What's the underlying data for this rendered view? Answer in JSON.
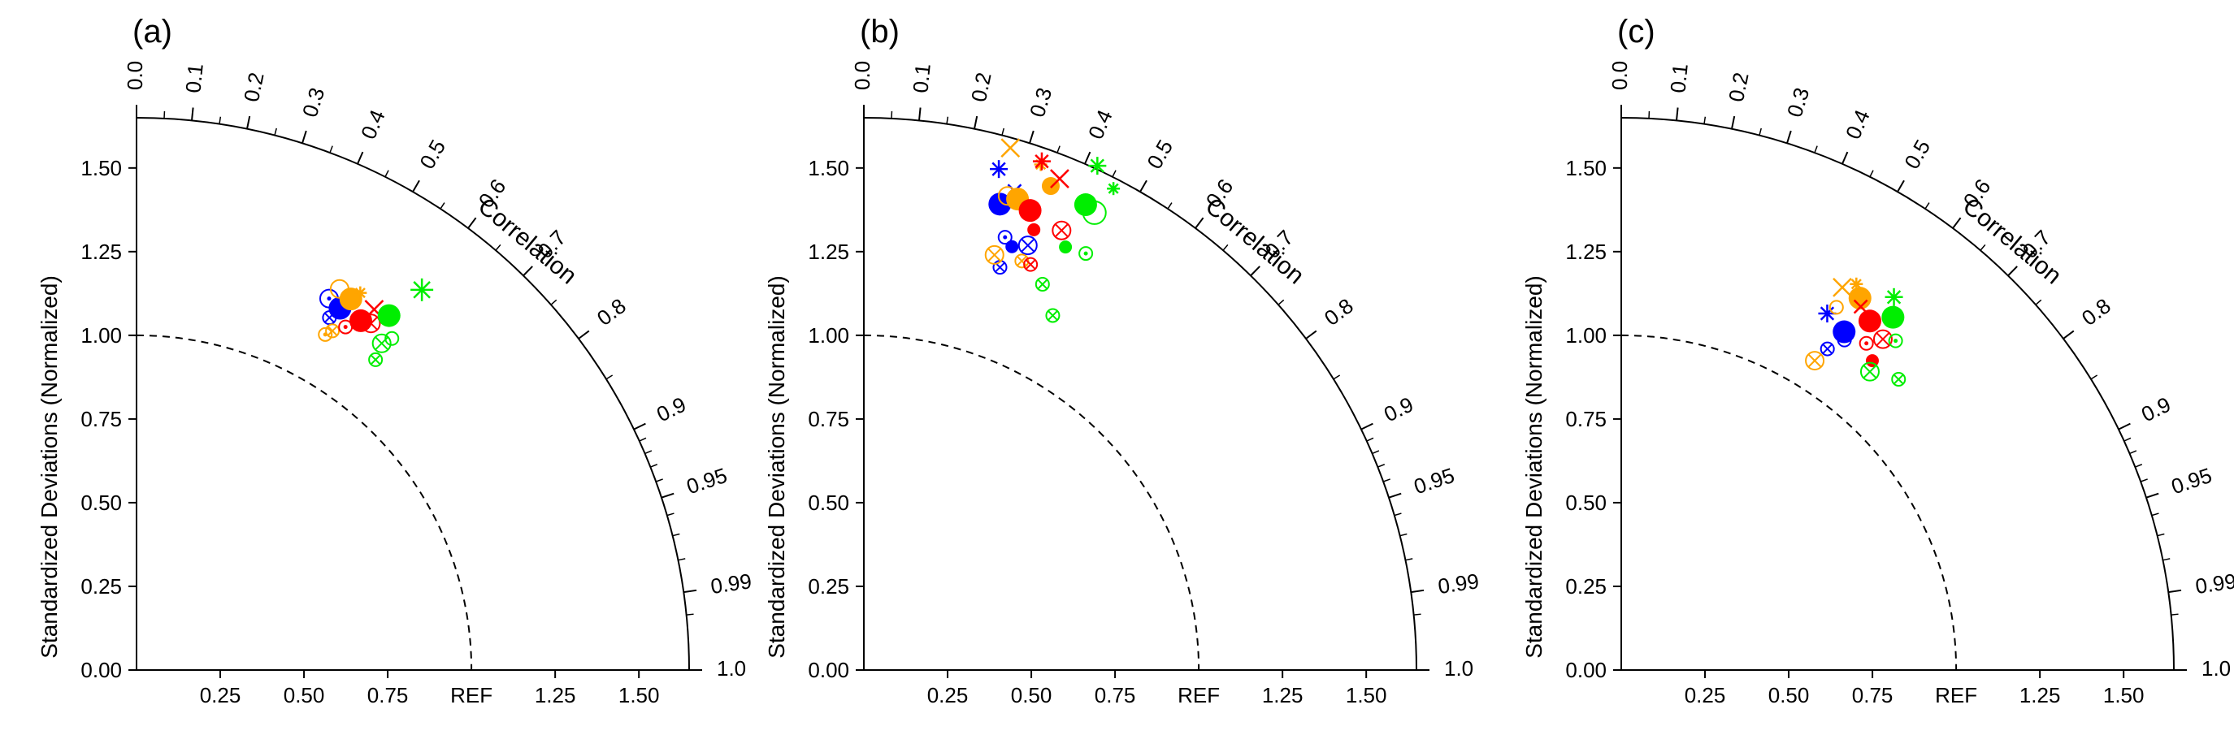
{
  "chart_data": [
    {
      "type": "scatter",
      "subtype": "taylor-diagram",
      "panel_label": "(a)",
      "ylabel": "Standardized Deviations (Normalized)",
      "xlabel_ref": "REF",
      "correlation_label": "Correlation",
      "std_range": [
        0,
        1.65
      ],
      "std_ticks": [
        "0.00",
        "0.25",
        "0.50",
        "0.75",
        "1.00",
        "1.25",
        "1.50"
      ],
      "x_ticks": [
        "0.25",
        "0.50",
        "0.75",
        "1.25",
        "1.50"
      ],
      "correlation_ticks": [
        "0.0",
        "0.1",
        "0.2",
        "0.3",
        "0.4",
        "0.5",
        "0.6",
        "0.7",
        "0.8",
        "0.9",
        "0.95",
        "0.99",
        "1.0"
      ],
      "ref_arc": 1.0,
      "points": [
        {
          "corr": 0.49,
          "std": 1.24,
          "color": "#0000ff",
          "marker": "circle-filled",
          "size": "large"
        },
        {
          "corr": 0.46,
          "std": 1.25,
          "color": "#0000ff",
          "marker": "circle-dot",
          "size": "medium"
        },
        {
          "corr": 0.48,
          "std": 1.2,
          "color": "#0000ff",
          "marker": "circle-cross",
          "size": "small"
        },
        {
          "corr": 0.5,
          "std": 1.28,
          "color": "#ffa500",
          "marker": "circle-filled",
          "size": "large"
        },
        {
          "corr": 0.47,
          "std": 1.29,
          "color": "#ffa500",
          "marker": "circle-open",
          "size": "medium"
        },
        {
          "corr": 0.51,
          "std": 1.31,
          "color": "#ffa500",
          "marker": "star",
          "size": "small"
        },
        {
          "corr": 0.5,
          "std": 1.17,
          "color": "#ffa500",
          "marker": "circle-cross",
          "size": "small"
        },
        {
          "corr": 0.49,
          "std": 1.15,
          "color": "#ffa500",
          "marker": "circle-dot",
          "size": "small"
        },
        {
          "corr": 0.54,
          "std": 1.24,
          "color": "#ff0000",
          "marker": "circle-filled",
          "size": "large"
        },
        {
          "corr": 0.55,
          "std": 1.29,
          "color": "#ff0000",
          "marker": "x",
          "size": "medium"
        },
        {
          "corr": 0.52,
          "std": 1.2,
          "color": "#ff0000",
          "marker": "circle-dot",
          "size": "small"
        },
        {
          "corr": 0.56,
          "std": 1.25,
          "color": "#ff0000",
          "marker": "circle-cross",
          "size": "medium"
        },
        {
          "corr": 0.58,
          "std": 1.3,
          "color": "#00ee00",
          "marker": "circle-filled",
          "size": "large"
        },
        {
          "corr": 0.6,
          "std": 1.42,
          "color": "#00ee00",
          "marker": "asterisk",
          "size": "large"
        },
        {
          "corr": 0.6,
          "std": 1.22,
          "color": "#00ee00",
          "marker": "circle-cross",
          "size": "medium"
        },
        {
          "corr": 0.61,
          "std": 1.17,
          "color": "#00ee00",
          "marker": "circle-cross",
          "size": "small"
        },
        {
          "corr": 0.61,
          "std": 1.25,
          "color": "#00ee00",
          "marker": "circle-open",
          "size": "small"
        }
      ]
    },
    {
      "type": "scatter",
      "subtype": "taylor-diagram",
      "panel_label": "(b)",
      "ylabel": "Standardized Deviations (Normalized)",
      "xlabel_ref": "REF",
      "correlation_label": "Correlation",
      "std_range": [
        0,
        1.65
      ],
      "std_ticks": [
        "0.00",
        "0.25",
        "0.50",
        "0.75",
        "1.00",
        "1.25",
        "1.50"
      ],
      "x_ticks": [
        "0.25",
        "0.50",
        "0.75",
        "1.25",
        "1.50"
      ],
      "correlation_ticks": [
        "0.0",
        "0.1",
        "0.2",
        "0.3",
        "0.4",
        "0.5",
        "0.6",
        "0.7",
        "0.8",
        "0.9",
        "0.95",
        "0.99",
        "1.0"
      ],
      "ref_arc": 1.0,
      "points": [
        {
          "corr": 0.28,
          "std": 1.45,
          "color": "#0000ff",
          "marker": "circle-filled",
          "size": "large"
        },
        {
          "corr": 0.26,
          "std": 1.55,
          "color": "#0000ff",
          "marker": "asterisk",
          "size": "medium"
        },
        {
          "corr": 0.31,
          "std": 1.36,
          "color": "#0000ff",
          "marker": "circle-dot",
          "size": "small"
        },
        {
          "corr": 0.36,
          "std": 1.36,
          "color": "#0000ff",
          "marker": "circle-cross",
          "size": "medium"
        },
        {
          "corr": 0.32,
          "std": 1.27,
          "color": "#0000ff",
          "marker": "circle-cross",
          "size": "small"
        },
        {
          "corr": 0.33,
          "std": 1.34,
          "color": "#0000ff",
          "marker": "circle-filled",
          "size": "small"
        },
        {
          "corr": 0.3,
          "std": 1.5,
          "color": "#0000ff",
          "marker": "x",
          "size": "small"
        },
        {
          "corr": 0.31,
          "std": 1.48,
          "color": "#ffa500",
          "marker": "circle-filled",
          "size": "large"
        },
        {
          "corr": 0.27,
          "std": 1.62,
          "color": "#ffa500",
          "marker": "x",
          "size": "medium"
        },
        {
          "corr": 0.29,
          "std": 1.48,
          "color": "#ffa500",
          "marker": "circle-open",
          "size": "medium"
        },
        {
          "corr": 0.36,
          "std": 1.55,
          "color": "#ffa500",
          "marker": "circle-filled",
          "size": "medium"
        },
        {
          "corr": 0.3,
          "std": 1.3,
          "color": "#ffa500",
          "marker": "circle-cross",
          "size": "medium"
        },
        {
          "corr": 0.33,
          "std": 1.6,
          "color": "#ffa500",
          "marker": "star",
          "size": "small"
        },
        {
          "corr": 0.36,
          "std": 1.31,
          "color": "#ffa500",
          "marker": "circle-cross",
          "size": "small"
        },
        {
          "corr": 0.34,
          "std": 1.46,
          "color": "#ff0000",
          "marker": "circle-filled",
          "size": "large"
        },
        {
          "corr": 0.33,
          "std": 1.61,
          "color": "#ff0000",
          "marker": "asterisk",
          "size": "medium"
        },
        {
          "corr": 0.37,
          "std": 1.58,
          "color": "#ff0000",
          "marker": "x",
          "size": "medium"
        },
        {
          "corr": 0.41,
          "std": 1.44,
          "color": "#ff0000",
          "marker": "circle-cross",
          "size": "medium"
        },
        {
          "corr": 0.38,
          "std": 1.31,
          "color": "#ff0000",
          "marker": "circle-cross",
          "size": "small"
        },
        {
          "corr": 0.36,
          "std": 1.41,
          "color": "#ff0000",
          "marker": "circle-filled",
          "size": "small"
        },
        {
          "corr": 0.43,
          "std": 1.54,
          "color": "#00ee00",
          "marker": "circle-filled",
          "size": "large"
        },
        {
          "corr": 0.42,
          "std": 1.66,
          "color": "#00ee00",
          "marker": "asterisk",
          "size": "medium"
        },
        {
          "corr": 0.46,
          "std": 1.62,
          "color": "#00ee00",
          "marker": "asterisk",
          "size": "small"
        },
        {
          "corr": 0.45,
          "std": 1.53,
          "color": "#00ee00",
          "marker": "circle-open",
          "size": "large"
        },
        {
          "corr": 0.47,
          "std": 1.41,
          "color": "#00ee00",
          "marker": "circle-dot",
          "size": "small"
        },
        {
          "corr": 0.43,
          "std": 1.4,
          "color": "#00ee00",
          "marker": "circle-filled",
          "size": "small"
        },
        {
          "corr": 0.42,
          "std": 1.27,
          "color": "#00ee00",
          "marker": "circle-cross",
          "size": "small"
        },
        {
          "corr": 0.47,
          "std": 1.2,
          "color": "#00ee00",
          "marker": "circle-cross",
          "size": "small"
        }
      ]
    },
    {
      "type": "scatter",
      "subtype": "taylor-diagram",
      "panel_label": "(c)",
      "ylabel": "Standardized Deviations (Normalized)",
      "xlabel_ref": "REF",
      "correlation_label": "Correlation",
      "std_range": [
        0,
        1.65
      ],
      "std_ticks": [
        "0.00",
        "0.25",
        "0.50",
        "0.75",
        "1.00",
        "1.25",
        "1.50"
      ],
      "x_ticks": [
        "0.25",
        "0.50",
        "0.75",
        "1.25",
        "1.50"
      ],
      "correlation_ticks": [
        "0.0",
        "0.1",
        "0.2",
        "0.3",
        "0.4",
        "0.5",
        "0.6",
        "0.7",
        "0.8",
        "0.9",
        "0.95",
        "0.99",
        "1.0"
      ],
      "ref_arc": 1.0,
      "points": [
        {
          "corr": 0.55,
          "std": 1.21,
          "color": "#0000ff",
          "marker": "circle-filled",
          "size": "large"
        },
        {
          "corr": 0.5,
          "std": 1.23,
          "color": "#0000ff",
          "marker": "asterisk",
          "size": "medium"
        },
        {
          "corr": 0.54,
          "std": 1.14,
          "color": "#0000ff",
          "marker": "circle-cross",
          "size": "small"
        },
        {
          "corr": 0.56,
          "std": 1.19,
          "color": "#0000ff",
          "marker": "circle-dot",
          "size": "small"
        },
        {
          "corr": 0.54,
          "std": 1.32,
          "color": "#ffa500",
          "marker": "circle-filled",
          "size": "large"
        },
        {
          "corr": 0.5,
          "std": 1.32,
          "color": "#ffa500",
          "marker": "x",
          "size": "medium"
        },
        {
          "corr": 0.52,
          "std": 1.35,
          "color": "#ffa500",
          "marker": "star",
          "size": "small"
        },
        {
          "corr": 0.53,
          "std": 1.09,
          "color": "#ffa500",
          "marker": "circle-cross",
          "size": "medium"
        },
        {
          "corr": 0.51,
          "std": 1.26,
          "color": "#ffa500",
          "marker": "circle-open",
          "size": "small"
        },
        {
          "corr": 0.58,
          "std": 1.28,
          "color": "#ff0000",
          "marker": "circle-filled",
          "size": "large"
        },
        {
          "corr": 0.55,
          "std": 1.3,
          "color": "#ff0000",
          "marker": "x",
          "size": "small"
        },
        {
          "corr": 0.62,
          "std": 1.26,
          "color": "#ff0000",
          "marker": "circle-cross",
          "size": "medium"
        },
        {
          "corr": 0.6,
          "std": 1.22,
          "color": "#ff0000",
          "marker": "circle-dot",
          "size": "small"
        },
        {
          "corr": 0.63,
          "std": 1.19,
          "color": "#ff0000",
          "marker": "circle-filled",
          "size": "small"
        },
        {
          "corr": 0.61,
          "std": 1.33,
          "color": "#00ee00",
          "marker": "circle-filled",
          "size": "large"
        },
        {
          "corr": 0.59,
          "std": 1.38,
          "color": "#00ee00",
          "marker": "asterisk",
          "size": "medium"
        },
        {
          "corr": 0.64,
          "std": 1.16,
          "color": "#00ee00",
          "marker": "circle-cross",
          "size": "medium"
        },
        {
          "corr": 0.69,
          "std": 1.2,
          "color": "#00ee00",
          "marker": "circle-cross",
          "size": "small"
        },
        {
          "corr": 0.64,
          "std": 1.28,
          "color": "#00ee00",
          "marker": "circle-dot",
          "size": "small"
        }
      ]
    }
  ]
}
